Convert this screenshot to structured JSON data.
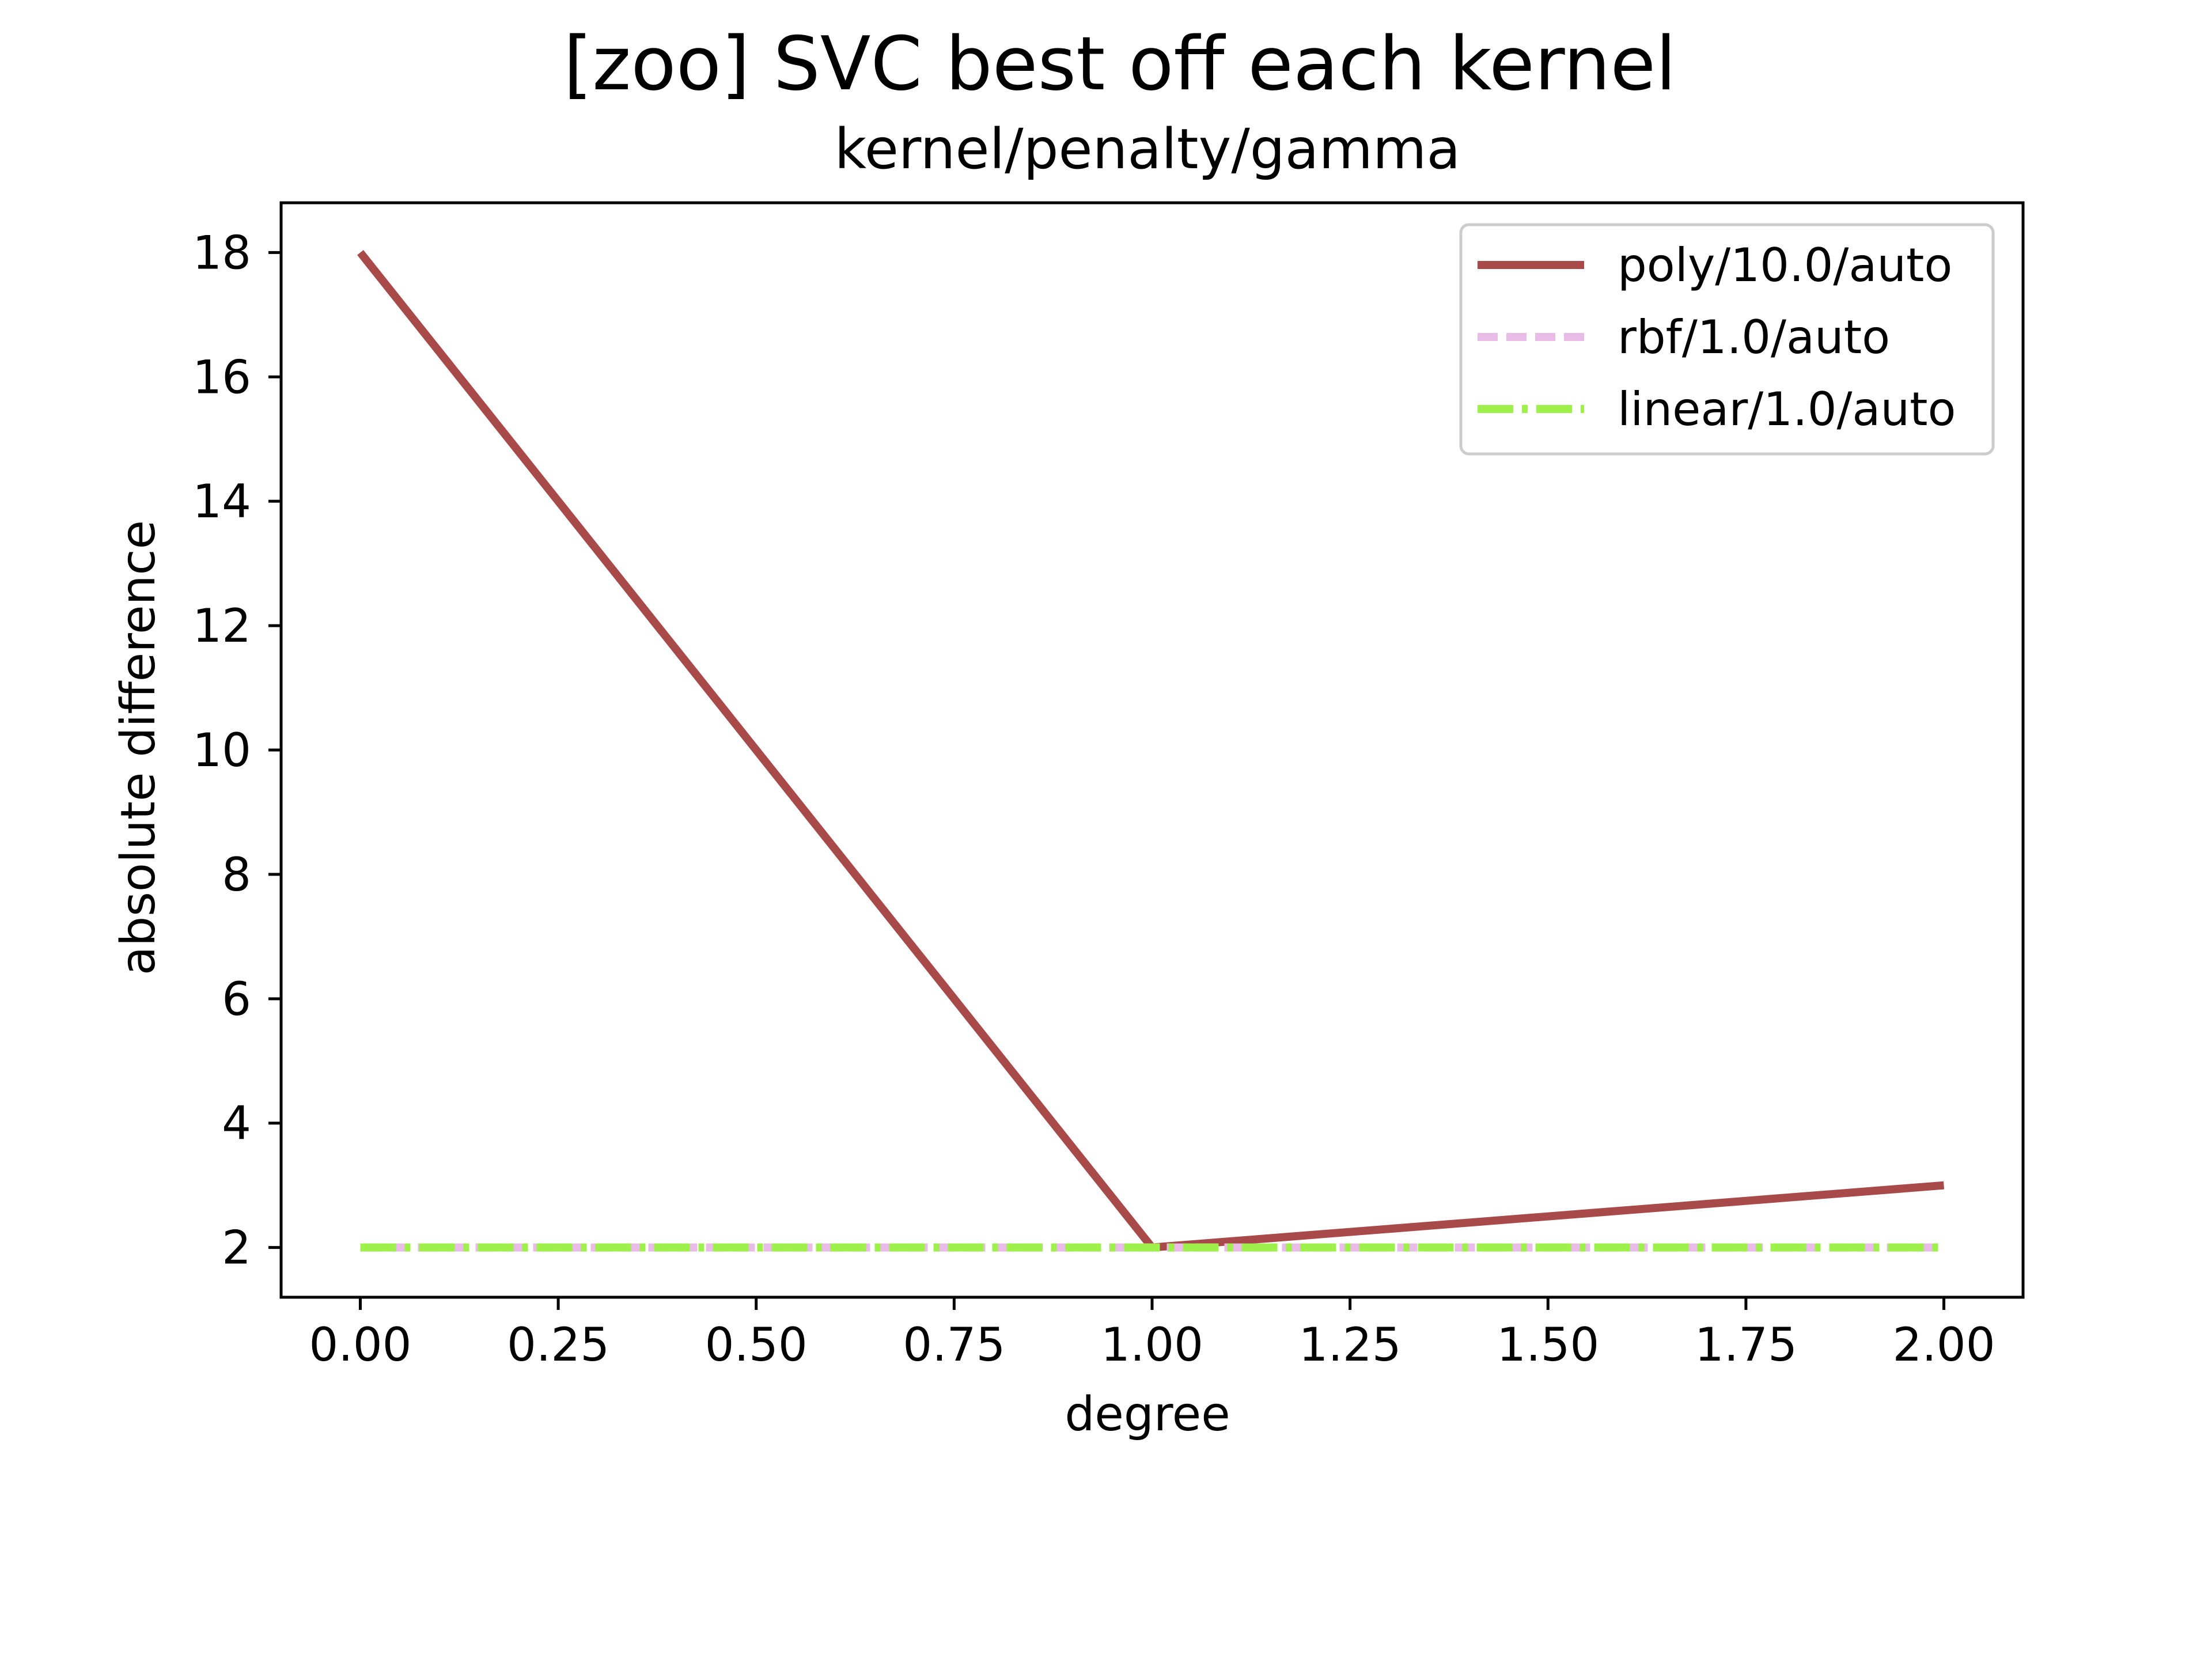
{
  "chart_data": {
    "type": "line",
    "title": "[zoo] SVC best off each kernel",
    "subtitle": "kernel/penalty/gamma",
    "xlabel": "degree",
    "ylabel": "absolute difference",
    "xlim": [
      -0.1,
      2.1
    ],
    "ylim": [
      1.2,
      18.8
    ],
    "x_ticks": [
      0.0,
      0.25,
      0.5,
      0.75,
      1.0,
      1.25,
      1.5,
      1.75,
      2.0
    ],
    "x_tick_labels": [
      "0.00",
      "0.25",
      "0.50",
      "0.75",
      "1.00",
      "1.25",
      "1.50",
      "1.75",
      "2.00"
    ],
    "y_ticks": [
      2,
      4,
      6,
      8,
      10,
      12,
      14,
      16,
      18
    ],
    "y_tick_labels": [
      "2",
      "4",
      "6",
      "8",
      "10",
      "12",
      "14",
      "16",
      "18"
    ],
    "grid": false,
    "legend_position": "top-right",
    "series": [
      {
        "name": "poly/10.0/auto",
        "x": [
          0,
          1,
          2
        ],
        "y": [
          18,
          2,
          3
        ],
        "color": "#a94a4a",
        "style": "solid"
      },
      {
        "name": "rbf/1.0/auto",
        "x": [
          0,
          1,
          2
        ],
        "y": [
          2,
          2,
          2
        ],
        "color": "#e8bce6",
        "style": "dashed"
      },
      {
        "name": "linear/1.0/auto",
        "x": [
          0,
          1,
          2
        ],
        "y": [
          2,
          2,
          2
        ],
        "color": "#9ef04a",
        "style": "dashdot"
      }
    ]
  }
}
